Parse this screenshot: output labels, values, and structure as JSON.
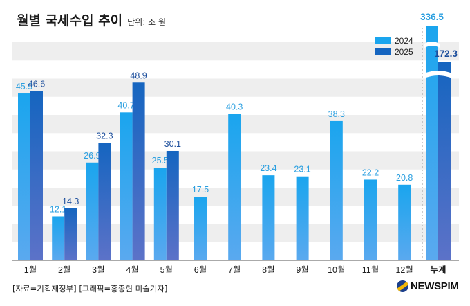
{
  "title": "월별 국세수입 추이",
  "unit_label": "단위: 조 원",
  "source": "[자료=기획재정부] [그래픽=홍종현 미술기자]",
  "brand": "NEWSPIM",
  "colors": {
    "series_2024": "#1aa5ee",
    "series_2025": "#1565c0",
    "label_2024": "#2a9fe0",
    "label_2025": "#1c4e9c",
    "band": "#eeeeee"
  },
  "chart_data": {
    "type": "bar",
    "categories": [
      "1월",
      "2월",
      "3월",
      "4월",
      "5월",
      "6월",
      "7월",
      "8월",
      "9월",
      "10월",
      "11월",
      "12월"
    ],
    "series": [
      {
        "name": "2024",
        "values": [
          45.9,
          12.1,
          26.9,
          40.7,
          25.5,
          17.5,
          40.3,
          23.4,
          23.1,
          38.3,
          22.2,
          20.8
        ]
      },
      {
        "name": "2025",
        "values": [
          46.6,
          14.3,
          32.3,
          48.9,
          30.1,
          null,
          null,
          null,
          null,
          null,
          null,
          null
        ]
      }
    ],
    "total": {
      "category": "누계",
      "values": [
        336.5,
        172.3
      ],
      "axis_break": true
    },
    "ylim": [
      0,
      60
    ],
    "grid": "alternating bands",
    "legend": "top-right",
    "data_labels": true
  }
}
